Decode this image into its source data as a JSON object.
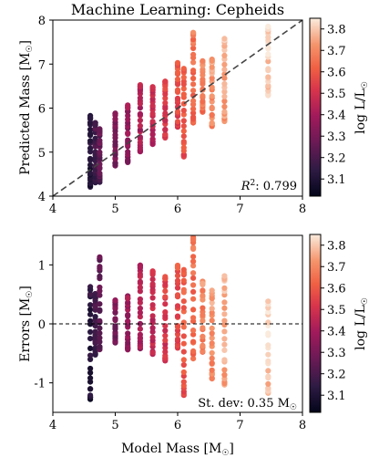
{
  "chart_data": [
    {
      "type": "scatter",
      "title": "Machine Learning: Cepheids",
      "xlabel": "",
      "ylabel": "Predicted Mass [M",
      "ylabel_sub": "☉",
      "ylabel_close": "]",
      "xlim": [
        4,
        8
      ],
      "ylim": [
        4,
        8
      ],
      "xticks": [
        "4",
        "5",
        "6",
        "7",
        "8"
      ],
      "yticks": [
        "4",
        "5",
        "6",
        "7",
        "8"
      ],
      "reference_line": "y = x (dashed)",
      "annotation_prefix": "R",
      "annotation_sup": "2",
      "annotation_value": ": 0.799",
      "colorbar": {
        "label": "log L/L",
        "label_sub": "☉",
        "range": [
          3.02,
          3.85
        ],
        "ticks": [
          "3.1",
          "3.2",
          "3.3",
          "3.4",
          "3.5",
          "3.6",
          "3.7",
          "3.8"
        ],
        "colormap": "rocket"
      },
      "columns": [
        {
          "x": 4.6,
          "ymin": 4.25,
          "ymax": 5.8,
          "lum": 3.12
        },
        {
          "x": 4.68,
          "ymin": 4.3,
          "ymax": 5.65,
          "lum": 3.18
        },
        {
          "x": 4.75,
          "ymin": 4.35,
          "ymax": 5.5,
          "lum": 3.24
        },
        {
          "x": 5.0,
          "ymin": 4.7,
          "ymax": 5.85,
          "lum": 3.3
        },
        {
          "x": 5.2,
          "ymin": 4.8,
          "ymax": 6.05,
          "lum": 3.36
        },
        {
          "x": 5.4,
          "ymin": 5.0,
          "ymax": 6.5,
          "lum": 3.42
        },
        {
          "x": 5.6,
          "ymin": 5.2,
          "ymax": 6.45,
          "lum": 3.47
        },
        {
          "x": 5.8,
          "ymin": 5.3,
          "ymax": 6.6,
          "lum": 3.52
        },
        {
          "x": 6.0,
          "ymin": 5.6,
          "ymax": 7.0,
          "lum": 3.57
        },
        {
          "x": 6.1,
          "ymin": 4.9,
          "ymax": 6.9,
          "lum": 3.6
        },
        {
          "x": 6.25,
          "ymin": 5.7,
          "ymax": 7.7,
          "lum": 3.64
        },
        {
          "x": 6.4,
          "ymin": 5.9,
          "ymax": 7.1,
          "lum": 3.68
        },
        {
          "x": 6.55,
          "ymin": 5.6,
          "ymax": 7.1,
          "lum": 3.72
        },
        {
          "x": 6.75,
          "ymin": 5.7,
          "ymax": 7.55,
          "lum": 3.76
        },
        {
          "x": 7.45,
          "ymin": 6.3,
          "ymax": 7.85,
          "lum": 3.81
        }
      ]
    },
    {
      "type": "scatter",
      "title": "",
      "xlabel": "Model Mass [M",
      "xlabel_sub": "☉",
      "xlabel_close": "]",
      "ylabel": "Errors [M",
      "ylabel_sub": "☉",
      "ylabel_close": "]",
      "xlim": [
        4,
        8
      ],
      "ylim": [
        -1.5,
        1.5
      ],
      "xticks": [
        "4",
        "5",
        "6",
        "7",
        "8"
      ],
      "yticks": [
        "-1",
        "0",
        "1"
      ],
      "reference_line": "y = 0 (dashed)",
      "annotation_prefix": "St. dev: 0.35 M",
      "annotation_sub": "☉",
      "colorbar": {
        "label": "log L/L",
        "label_sub": "☉",
        "range": [
          3.02,
          3.85
        ],
        "ticks": [
          "3.1",
          "3.2",
          "3.3",
          "3.4",
          "3.5",
          "3.6",
          "3.7",
          "3.8"
        ],
        "colormap": "rocket"
      },
      "columns": [
        {
          "x": 4.6,
          "ymin": -1.25,
          "ymax": 0.6,
          "lum": 3.12
        },
        {
          "x": 4.68,
          "ymin": -0.5,
          "ymax": 0.5,
          "lum": 3.18
        },
        {
          "x": 4.75,
          "ymin": -0.45,
          "ymax": 1.1,
          "lum": 3.24
        },
        {
          "x": 5.0,
          "ymin": -0.3,
          "ymax": 0.4,
          "lum": 3.3
        },
        {
          "x": 5.2,
          "ymin": -0.45,
          "ymax": 0.45,
          "lum": 3.36
        },
        {
          "x": 5.4,
          "ymin": -0.4,
          "ymax": 1.0,
          "lum": 3.42
        },
        {
          "x": 5.6,
          "ymin": -0.5,
          "ymax": 0.9,
          "lum": 3.47
        },
        {
          "x": 5.8,
          "ymin": -0.6,
          "ymax": 0.8,
          "lum": 3.52
        },
        {
          "x": 6.0,
          "ymin": -0.4,
          "ymax": 1.0,
          "lum": 3.57
        },
        {
          "x": 6.1,
          "ymin": -1.2,
          "ymax": 0.9,
          "lum": 3.6
        },
        {
          "x": 6.25,
          "ymin": -0.55,
          "ymax": 1.45,
          "lum": 3.64
        },
        {
          "x": 6.4,
          "ymin": -0.45,
          "ymax": 0.7,
          "lum": 3.68
        },
        {
          "x": 6.55,
          "ymin": -0.9,
          "ymax": 0.55,
          "lum": 3.72
        },
        {
          "x": 6.75,
          "ymin": -1.0,
          "ymax": 0.8,
          "lum": 3.76
        },
        {
          "x": 7.45,
          "ymin": -1.15,
          "ymax": 0.4,
          "lum": 3.81
        }
      ]
    }
  ]
}
